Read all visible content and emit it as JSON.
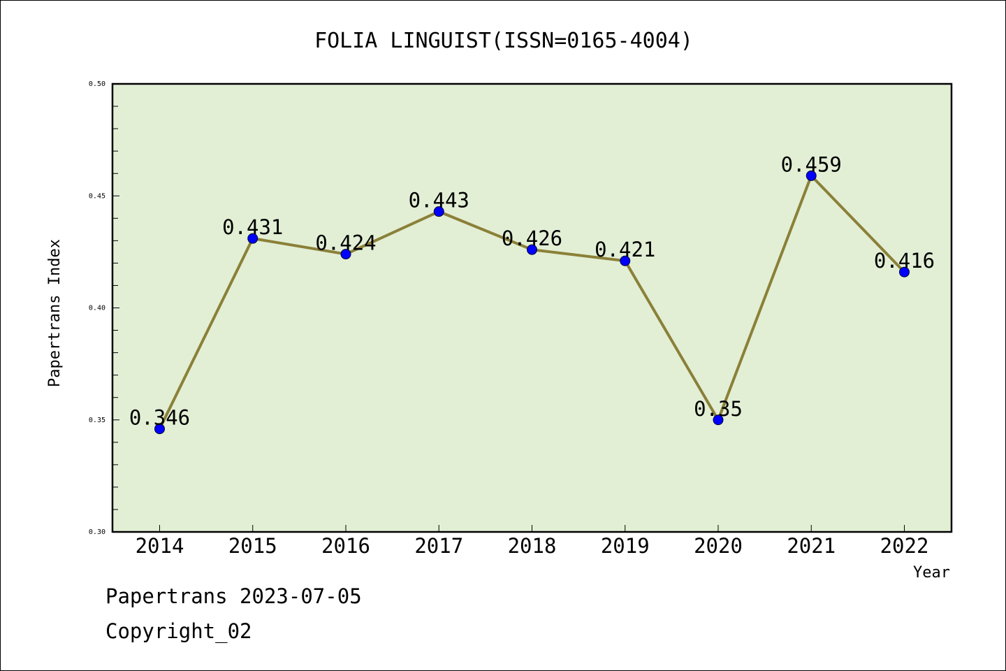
{
  "chart_data": {
    "type": "line",
    "title": "FOLIA LINGUIST(ISSN=0165-4004)",
    "xlabel": "Year",
    "ylabel": "Papertrans Index",
    "categories": [
      "2014",
      "2015",
      "2016",
      "2017",
      "2018",
      "2019",
      "2020",
      "2021",
      "2022"
    ],
    "series": [
      {
        "values": [
          0.346,
          0.431,
          0.424,
          0.443,
          0.426,
          0.421,
          0.35,
          0.459,
          0.416
        ]
      }
    ],
    "data_labels": [
      "0.346",
      "0.431",
      "0.424",
      "0.443",
      "0.426",
      "0.421",
      "0.35",
      "0.459",
      "0.416"
    ],
    "ylim": [
      0.3,
      0.5
    ],
    "yticks": [
      "0.30",
      "0.35",
      "0.40",
      "0.45",
      "0.50"
    ],
    "grid": false,
    "colors": {
      "plot_background": "#e2efd5",
      "line": "#8b8038",
      "marker": "#0000ff"
    }
  },
  "footer": {
    "line1": "Papertrans 2023-07-05",
    "line2": "Copyright_02"
  }
}
